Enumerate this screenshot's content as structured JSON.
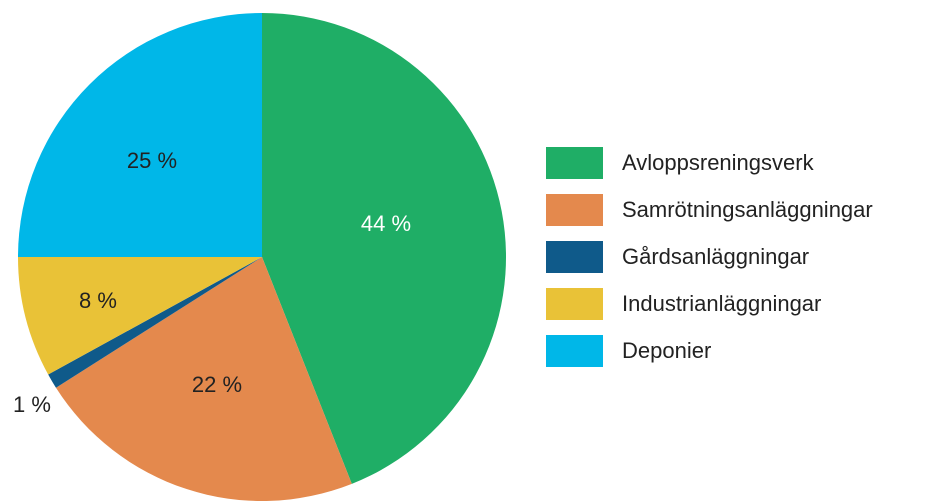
{
  "chart_data": {
    "type": "pie",
    "title": "",
    "legend_position": "right",
    "slices": [
      {
        "name": "Avloppsreningsverk",
        "value": 44,
        "label": "44 %",
        "color": "#1fae66",
        "label_color": "#ffffff"
      },
      {
        "name": "Samrötningsanläggningar",
        "value": 22,
        "label": "22 %",
        "color": "#e4894d",
        "label_color": "#222222"
      },
      {
        "name": "Gårdsanläggningar",
        "value": 1,
        "label": "1 %",
        "color": "#0f5a8a",
        "label_color": "#222222"
      },
      {
        "name": "Industrianläggningar",
        "value": 8,
        "label": "8 %",
        "color": "#e9c237",
        "label_color": "#222222"
      },
      {
        "name": "Deponier",
        "value": 25,
        "label": "25 %",
        "color": "#00b7e8",
        "label_color": "#222222"
      }
    ]
  }
}
